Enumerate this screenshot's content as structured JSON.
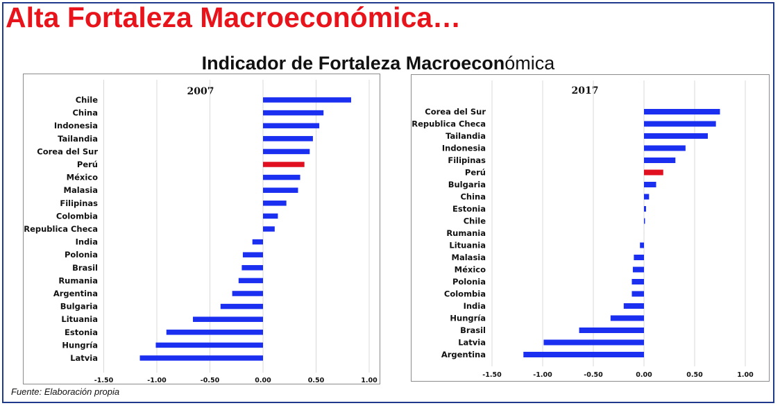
{
  "page": {
    "title": "Alta Fortaleza Macroeconómica…",
    "subtitle_bold": "Indicador de Fortaleza Macroecon",
    "subtitle_light": "ómica",
    "source_prefix": "Fuente",
    "source_rest": ": Elaboración propia"
  },
  "colors": {
    "bar": "#1a2ff0",
    "highlight": "#e01020",
    "title": "#e8141c",
    "grid": "#d8d8d8"
  },
  "chart_data": [
    {
      "type": "bar",
      "orientation": "horizontal",
      "title": "2007",
      "categories": [
        "Chile",
        "China",
        "Indonesia",
        "Tailandia",
        "Corea del Sur",
        "Perú",
        "México",
        "Malasia",
        "Filipinas",
        "Colombia",
        "Republica Checa",
        "India",
        "Polonia",
        "Brasil",
        "Rumania",
        "Argentina",
        "Bulgaria",
        "Lituania",
        "Estonia",
        "Hungría",
        "Latvia"
      ],
      "values": [
        0.83,
        0.57,
        0.53,
        0.47,
        0.44,
        0.39,
        0.35,
        0.33,
        0.22,
        0.14,
        0.11,
        -0.1,
        -0.19,
        -0.2,
        -0.23,
        -0.29,
        -0.4,
        -0.66,
        -0.91,
        -1.01,
        -1.16
      ],
      "highlight": "Perú",
      "xlim": [
        -1.5,
        1.0
      ],
      "xticks": [
        "-1.50",
        "-1.00",
        "-0.50",
        "0.00",
        "0.50",
        "1.00"
      ],
      "grid": true
    },
    {
      "type": "bar",
      "orientation": "horizontal",
      "title": "2017",
      "categories": [
        "Corea del Sur",
        "Republica Checa",
        "Tailandia",
        "Indonesia",
        "Filipinas",
        "Perú",
        "Bulgaria",
        "China",
        "Estonia",
        "Chile",
        "Rumania",
        "Lituania",
        "Malasia",
        "México",
        "Polonia",
        "Colombia",
        "India",
        "Hungría",
        "Brasil",
        "Latvia",
        "Argentina"
      ],
      "values": [
        0.75,
        0.71,
        0.63,
        0.41,
        0.31,
        0.19,
        0.12,
        0.05,
        0.02,
        0.01,
        0.0,
        -0.04,
        -0.1,
        -0.11,
        -0.12,
        -0.12,
        -0.2,
        -0.33,
        -0.64,
        -0.99,
        -1.19
      ],
      "highlight": "Perú",
      "xlim": [
        -1.5,
        1.0
      ],
      "xticks": [
        "-1.50",
        "-1.00",
        "-0.50",
        "0.00",
        "0.50",
        "1.00"
      ],
      "grid": true
    }
  ]
}
